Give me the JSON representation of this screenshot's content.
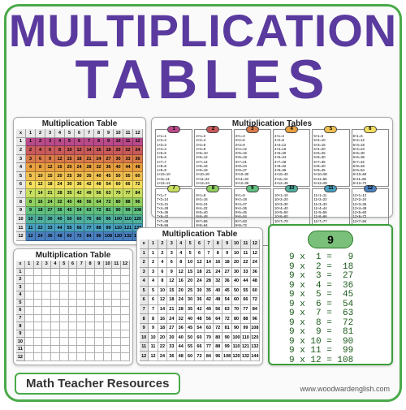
{
  "frame_border_color": "#4aaa4a",
  "title": {
    "line1": "MULTIPLICATION",
    "line2": "TABLES",
    "color": "#5a3a9e"
  },
  "footer_label": "Math Teacher Resources",
  "credit": "www.woodwardenglish.com",
  "grid": {
    "size": 12,
    "header_bg": "#e8e8e8",
    "row_colors": [
      "#b94a8a",
      "#c85a5a",
      "#d87a4a",
      "#e8a040",
      "#f0c050",
      "#f5e060",
      "#c8e060",
      "#90d060",
      "#60c080",
      "#50b0a0",
      "#4aa0c0",
      "#4a80c0"
    ]
  },
  "card_titles": {
    "colored": "Multiplication Table",
    "lists": "Multiplication Tables",
    "blank": "Multiplication Table",
    "filled": "Multiplication Table"
  },
  "mini_header_colors": [
    "#b94a8a",
    "#c85a5a",
    "#d87a4a",
    "#e8a040",
    "#f0c050",
    "#f5e060",
    "#c8e060",
    "#90d060",
    "#60c080",
    "#50b0a0",
    "#4aa0c0",
    "#4a80c0"
  ],
  "single": {
    "n": 9,
    "header_bg": "#7ac07a",
    "text_color": "#1a5a1a"
  }
}
